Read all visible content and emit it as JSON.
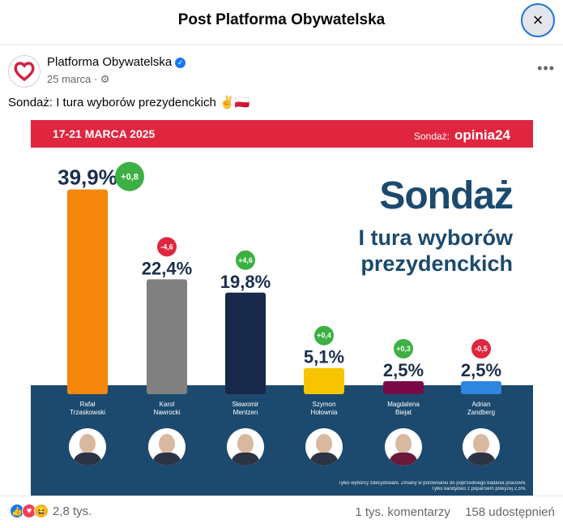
{
  "dialog": {
    "title": "Post Platforma Obywatelska",
    "close_icon": "×"
  },
  "post": {
    "page_name": "Platforma Obywatelska",
    "date": "25 marca",
    "audience_icon": "gear-icon",
    "more_label": "•••",
    "caption": "Sondaż: I tura wyborów prezydenckich ✌️🇵🇱"
  },
  "graphic": {
    "date_range": "17-21 MARCA 2025",
    "source_label": "Sondaż:",
    "source_brand": "opinia24",
    "headline_1": "Sondaż",
    "headline_2": "I tura wyborów",
    "headline_3": "prezydenckich",
    "footnote_1": "Tylko wyborcy zdecydowani. Zmiany w porównaniu do poprzedniego badania pracowni.",
    "footnote_2": "Tylko kandydaci z poparciem powyżej 2,5%.",
    "colors": {
      "brand_red": "#e0263f",
      "base_blue": "#1c4a6e",
      "gain_green": "#3cb043",
      "loss_red": "#e0263f"
    }
  },
  "chart_data": {
    "type": "bar",
    "categories": [
      "Rafał Trzaskowski",
      "Karol Nawrocki",
      "Sławomir Mentzen",
      "Szymon Hołownia",
      "Magdalena Biejat",
      "Adrian Zandberg"
    ],
    "category_lines": [
      [
        "Rafał",
        "Trzaskowski"
      ],
      [
        "Karol",
        "Nawrocki"
      ],
      [
        "Sławomir",
        "Mentzen"
      ],
      [
        "Szymon",
        "Hołownia"
      ],
      [
        "Magdalena",
        "Biejat"
      ],
      [
        "Adrian",
        "Zandberg"
      ]
    ],
    "values": [
      39.9,
      22.4,
      19.8,
      5.1,
      2.5,
      2.5
    ],
    "value_labels": [
      "39,9%",
      "22,4%",
      "19,8%",
      "5,1%",
      "2,5%",
      "2,5%"
    ],
    "changes": [
      "+0,8",
      "-4,6",
      "+4,6",
      "+0,4",
      "+0,3",
      "-0,5"
    ],
    "bar_colors": [
      "#f4870c",
      "#808080",
      "#17284a",
      "#f6c500",
      "#7a0a47",
      "#2e86de"
    ],
    "ylim": [
      0,
      40
    ]
  },
  "footer": {
    "reaction_count": "2,8 tys.",
    "comments": "1 tys. komentarzy",
    "shares": "158 udostępnień"
  }
}
